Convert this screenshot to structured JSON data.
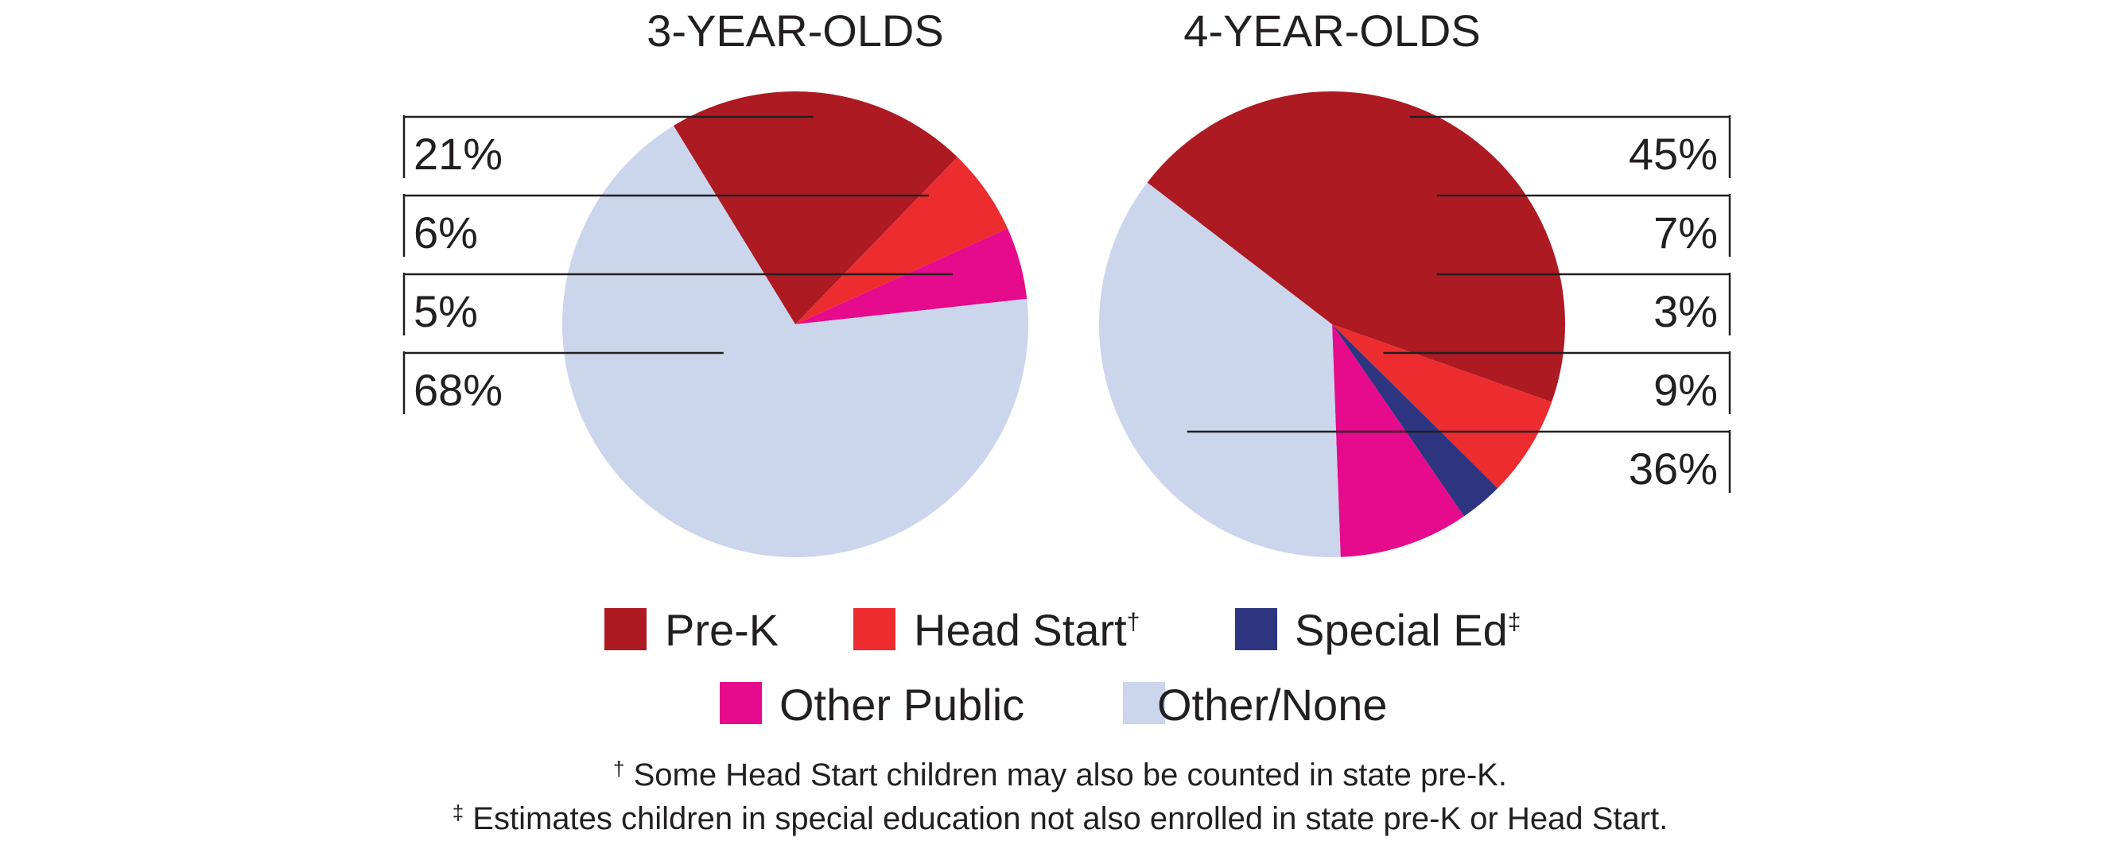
{
  "chart_data": [
    {
      "type": "pie",
      "title": "3-YEAR-OLDS",
      "slices": [
        {
          "category": "Pre-K",
          "value": 21,
          "label": "21%"
        },
        {
          "category": "Head Start",
          "value": 6,
          "label": "6%"
        },
        {
          "category": "Special Ed",
          "value": 0,
          "label": ""
        },
        {
          "category": "Other Public",
          "value": 5,
          "label": "5%"
        },
        {
          "category": "Other/None",
          "value": 68,
          "label": "68%"
        }
      ],
      "label_side": "left"
    },
    {
      "type": "pie",
      "title": "4-YEAR-OLDS",
      "slices": [
        {
          "category": "Pre-K",
          "value": 45,
          "label": "45%"
        },
        {
          "category": "Head Start",
          "value": 7,
          "label": "7%"
        },
        {
          "category": "Special Ed",
          "value": 3,
          "label": "3%"
        },
        {
          "category": "Other Public",
          "value": 9,
          "label": "9%"
        },
        {
          "category": "Other/None",
          "value": 36,
          "label": "36%"
        }
      ],
      "label_side": "right"
    }
  ],
  "legend": [
    {
      "label": "Pre-K",
      "mark": "",
      "color": "#ad1a22"
    },
    {
      "label": "Head Start",
      "mark": "†",
      "color": "#ec2c2e"
    },
    {
      "label": "Special Ed",
      "mark": "‡",
      "color": "#2e3580"
    },
    {
      "label": "Other Public",
      "mark": "",
      "color": "#e60a8c"
    },
    {
      "label": "Other/None",
      "mark": "",
      "color": "#cbd5ec"
    }
  ],
  "footnotes": [
    {
      "mark": "†",
      "text": " Some Head Start children may also be counted in state pre-K."
    },
    {
      "mark": "‡",
      "text": " Estimates children in special education not also enrolled in state pre-K or Head Start."
    }
  ]
}
